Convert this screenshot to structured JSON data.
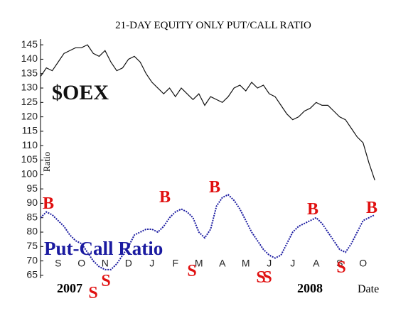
{
  "chart_data": {
    "type": "line",
    "title": "21-DAY EQUITY ONLY PUT/CALL RATIO",
    "y_label": "Ratio",
    "x_label": "Date",
    "year_labels": [
      "2007",
      "2008"
    ],
    "categories": [
      null,
      null,
      null,
      "S",
      null,
      null,
      null,
      "O",
      null,
      null,
      null,
      "N",
      null,
      null,
      null,
      "D",
      null,
      null,
      null,
      "J",
      null,
      null,
      null,
      "F",
      null,
      null,
      null,
      "M",
      null,
      null,
      null,
      "A",
      null,
      null,
      null,
      "M",
      null,
      null,
      null,
      "J",
      null,
      null,
      null,
      "J",
      null,
      null,
      null,
      "A",
      null,
      null,
      null,
      "S",
      null,
      null,
      null,
      "O",
      null,
      null
    ],
    "series": [
      {
        "name": "$OEX",
        "color": "#111111",
        "values": [
          134,
          137,
          136,
          139,
          142,
          143,
          144,
          144,
          145,
          142,
          141,
          143,
          139,
          136,
          137,
          140,
          141,
          139,
          135,
          132,
          130,
          128,
          130,
          127,
          130,
          128,
          126,
          128,
          124,
          127,
          126,
          125,
          127,
          130,
          131,
          129,
          132,
          130,
          131,
          128,
          127,
          124,
          121,
          119,
          120,
          122,
          123,
          125,
          124,
          124,
          122,
          120,
          119,
          116,
          113,
          111,
          104,
          98
        ]
      },
      {
        "name": "Put-Call Ratio",
        "color": "#1a1aa0",
        "values": [
          85,
          87,
          86,
          84,
          82,
          79,
          77,
          76,
          73,
          70,
          68,
          67,
          67,
          69,
          72,
          75,
          79,
          80,
          81,
          81,
          80,
          82,
          85,
          87,
          88,
          87,
          85,
          80,
          78,
          81,
          89,
          92,
          93,
          91,
          88,
          84,
          80,
          77,
          74,
          72,
          71,
          72,
          76,
          80,
          82,
          83,
          84,
          85,
          83,
          80,
          77,
          74,
          73,
          76,
          80,
          84,
          85,
          86
        ]
      }
    ],
    "annotations": [
      "B",
      "S",
      "S",
      "B",
      "S",
      "B",
      "S",
      "S",
      "B",
      "S",
      "B"
    ],
    "annotation_color": "#e01010",
    "ylim": [
      64,
      147
    ],
    "yticks": [
      65,
      70,
      75,
      80,
      85,
      90,
      95,
      100,
      105,
      110,
      115,
      120,
      125,
      130,
      135,
      140,
      145
    ]
  }
}
